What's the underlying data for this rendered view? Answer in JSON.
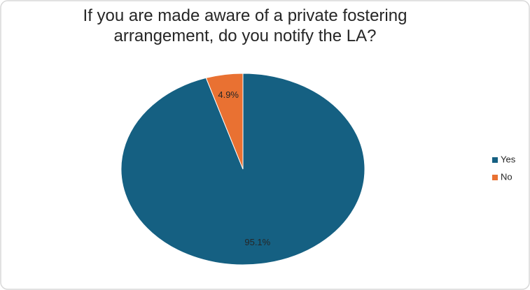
{
  "chart_data": {
    "type": "pie",
    "title": "If you are made aware of a private fostering arrangement, do you notify the LA?",
    "series": [
      {
        "name": "Yes",
        "color": "#156082",
        "values": [
          95.1
        ],
        "value_labels": [
          "95.1%"
        ]
      },
      {
        "name": "No",
        "color": "#e97132",
        "values": [
          4.9
        ],
        "value_labels": [
          "4.9%"
        ]
      }
    ],
    "legend": "right"
  }
}
